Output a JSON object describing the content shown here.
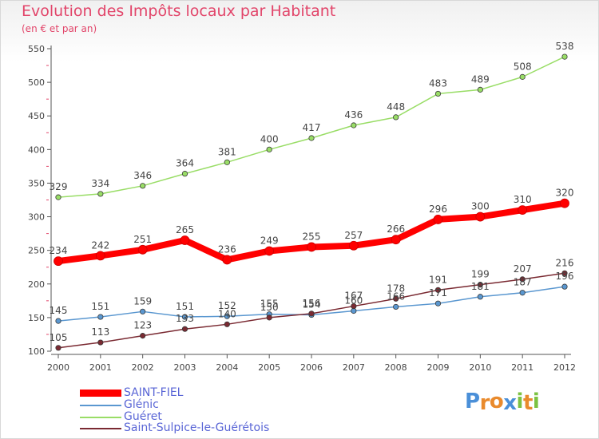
{
  "header": {
    "title": "Evolution des Impôts locaux par Habitant",
    "subtitle": "(en € et par an)"
  },
  "brand": {
    "logo_letters": [
      "P",
      "r",
      "o",
      "x",
      "i",
      "t",
      "i"
    ],
    "logo_colors": [
      "#4a8fd8",
      "#e98a2c",
      "#e98a2c",
      "#4a8fd8",
      "#7cc242",
      "#e98a2c",
      "#7cc242"
    ]
  },
  "chart_data": {
    "type": "line",
    "x": [
      2000,
      2001,
      2002,
      2003,
      2004,
      2005,
      2006,
      2007,
      2008,
      2009,
      2010,
      2011,
      2012
    ],
    "ylim": [
      100,
      550
    ],
    "yticks": [
      100,
      150,
      200,
      250,
      300,
      350,
      400,
      450,
      500,
      550
    ],
    "grid": false,
    "legend_position": "bottom-left",
    "series": [
      {
        "name": "SAINT-FIEL",
        "color": "#ff0000",
        "values": [
          234,
          242,
          251,
          265,
          236,
          249,
          255,
          257,
          266,
          296,
          300,
          310,
          320
        ],
        "labels": [
          "234",
          "242",
          "251",
          "265",
          "236",
          "249",
          "255",
          "257",
          "266",
          "296",
          "300",
          "310",
          "320"
        ]
      },
      {
        "name": "Glénic",
        "color": "#5a97d0",
        "values": [
          145,
          151,
          159,
          151,
          152,
          155,
          154,
          160,
          166,
          171,
          181,
          187,
          196
        ],
        "labels": [
          "145",
          "151",
          "159",
          "151",
          "152",
          "155",
          "154",
          "160",
          "166",
          "171",
          "181",
          "187",
          "196"
        ]
      },
      {
        "name": "Guéret",
        "color": "#99dd66",
        "values": [
          329,
          334,
          346,
          364,
          381,
          400,
          417,
          436,
          448,
          483,
          489,
          508,
          538
        ],
        "labels": [
          "329",
          "334",
          "346",
          "364",
          "381",
          "400",
          "417",
          "436",
          "448",
          "483",
          "489",
          "508",
          "538"
        ]
      },
      {
        "name": "Saint-Sulpice-le-Guérétois",
        "color": "#7a2a32",
        "values": [
          105,
          113,
          123,
          133,
          140,
          150,
          156,
          167,
          178,
          191,
          199,
          207,
          216
        ],
        "labels": [
          "105",
          "113",
          "123",
          "133",
          "140",
          "150",
          "156",
          "167",
          "178",
          "191",
          "199",
          "207",
          "216"
        ]
      }
    ]
  }
}
